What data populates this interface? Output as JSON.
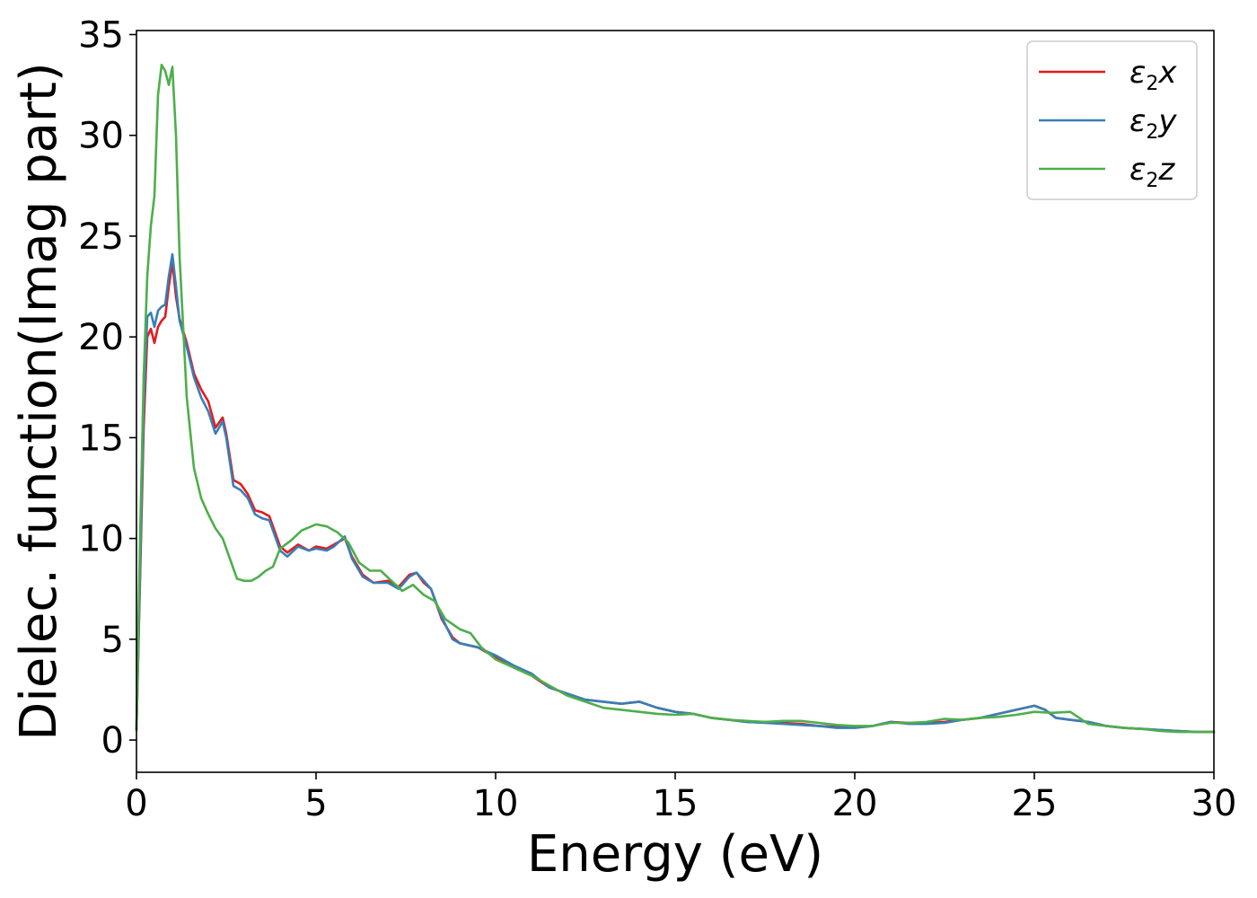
{
  "chart_data": {
    "type": "line",
    "xlabel": "Energy (eV)",
    "ylabel": "Dielec. function(Imag part)",
    "xlim": [
      0,
      30
    ],
    "ylim": [
      -1.6,
      35.2
    ],
    "xticks": [
      0,
      5,
      10,
      15,
      20,
      25,
      30
    ],
    "yticks": [
      0,
      5,
      10,
      15,
      20,
      25,
      30,
      35
    ],
    "grid": false,
    "legend_position": "top-right",
    "series": [
      {
        "name": "ε2x",
        "legend": {
          "symbol": "ε",
          "sub": "2",
          "axis": "x"
        },
        "color": "#e41a1c",
        "x": [
          0,
          0.1,
          0.2,
          0.3,
          0.4,
          0.5,
          0.6,
          0.7,
          0.8,
          0.9,
          1.0,
          1.1,
          1.2,
          1.4,
          1.6,
          1.8,
          2.0,
          2.2,
          2.4,
          2.5,
          2.7,
          2.9,
          3.1,
          3.3,
          3.5,
          3.7,
          4.0,
          4.2,
          4.5,
          4.8,
          5.0,
          5.3,
          5.5,
          5.8,
          6.0,
          6.3,
          6.6,
          7.0,
          7.3,
          7.6,
          7.8,
          8.0,
          8.2,
          8.5,
          8.8,
          9.0,
          9.5,
          10.0,
          10.5,
          11.0,
          11.5,
          12.0,
          12.5,
          13.0,
          13.5,
          14.0,
          14.5,
          15.0,
          15.5,
          16.0,
          16.5,
          17.0,
          17.5,
          18.0,
          18.5,
          19.0,
          19.5,
          20.0,
          20.5,
          21.0,
          21.5,
          22.0,
          22.5,
          23.0,
          23.5,
          24.0,
          24.5,
          25.0,
          25.3,
          25.6,
          26.0,
          26.5,
          27.0,
          27.5,
          28.0,
          28.5,
          29.0,
          29.5,
          30.0
        ],
        "y": [
          0.5,
          8.0,
          15.5,
          20.0,
          20.4,
          19.7,
          20.5,
          20.8,
          21.0,
          22.5,
          23.7,
          22.0,
          20.9,
          19.7,
          18.2,
          17.4,
          16.8,
          15.5,
          16.0,
          15.2,
          12.9,
          12.7,
          12.2,
          11.4,
          11.3,
          11.1,
          9.6,
          9.3,
          9.7,
          9.4,
          9.6,
          9.5,
          9.7,
          10.0,
          9.1,
          8.2,
          7.8,
          7.9,
          7.6,
          8.2,
          8.3,
          7.8,
          7.5,
          6.0,
          5.1,
          4.8,
          4.6,
          4.1,
          3.6,
          3.2,
          2.6,
          2.3,
          2.0,
          1.9,
          1.8,
          1.9,
          1.6,
          1.4,
          1.3,
          1.1,
          1.0,
          0.9,
          0.9,
          0.85,
          0.8,
          0.7,
          0.65,
          0.62,
          0.7,
          0.9,
          0.85,
          0.85,
          0.9,
          1.0,
          1.1,
          1.3,
          1.5,
          1.7,
          1.5,
          1.1,
          1.0,
          0.9,
          0.7,
          0.6,
          0.55,
          0.5,
          0.45,
          0.4,
          0.4
        ]
      },
      {
        "name": "ε2y",
        "legend": {
          "symbol": "ε",
          "sub": "2",
          "axis": "y"
        },
        "color": "#377eb8",
        "x": [
          0,
          0.1,
          0.2,
          0.3,
          0.4,
          0.5,
          0.6,
          0.7,
          0.8,
          0.9,
          1.0,
          1.1,
          1.2,
          1.4,
          1.6,
          1.8,
          2.0,
          2.2,
          2.4,
          2.5,
          2.7,
          2.9,
          3.1,
          3.3,
          3.5,
          3.7,
          4.0,
          4.2,
          4.5,
          4.8,
          5.0,
          5.3,
          5.5,
          5.8,
          6.0,
          6.3,
          6.6,
          7.0,
          7.3,
          7.6,
          7.8,
          8.0,
          8.2,
          8.5,
          8.8,
          9.0,
          9.5,
          10.0,
          10.5,
          11.0,
          11.5,
          12.0,
          12.5,
          13.0,
          13.5,
          14.0,
          14.5,
          15.0,
          15.5,
          16.0,
          16.5,
          17.0,
          17.5,
          18.0,
          18.5,
          19.0,
          19.5,
          20.0,
          20.5,
          21.0,
          21.5,
          22.0,
          22.5,
          23.0,
          23.5,
          24.0,
          24.5,
          25.0,
          25.3,
          25.6,
          26.0,
          26.5,
          27.0,
          27.5,
          28.0,
          28.5,
          29.0,
          29.5,
          30.0
        ],
        "y": [
          0.5,
          8.5,
          16.5,
          21.0,
          21.2,
          20.5,
          21.3,
          21.5,
          21.6,
          23.0,
          24.1,
          22.5,
          20.8,
          19.5,
          18.0,
          17.0,
          16.3,
          15.2,
          15.8,
          15.0,
          12.6,
          12.4,
          12.0,
          11.2,
          11.0,
          10.9,
          9.4,
          9.1,
          9.6,
          9.4,
          9.5,
          9.4,
          9.6,
          10.1,
          9.0,
          8.1,
          7.8,
          7.8,
          7.5,
          8.1,
          8.3,
          7.9,
          7.5,
          6.1,
          5.0,
          4.8,
          4.6,
          4.2,
          3.7,
          3.3,
          2.6,
          2.3,
          2.0,
          1.9,
          1.8,
          1.9,
          1.6,
          1.4,
          1.3,
          1.1,
          1.0,
          0.9,
          0.85,
          0.8,
          0.75,
          0.7,
          0.6,
          0.6,
          0.7,
          0.9,
          0.8,
          0.8,
          0.85,
          1.0,
          1.1,
          1.3,
          1.5,
          1.7,
          1.5,
          1.1,
          1.0,
          0.9,
          0.7,
          0.6,
          0.55,
          0.5,
          0.45,
          0.4,
          0.4
        ]
      },
      {
        "name": "ε2z",
        "legend": {
          "symbol": "ε",
          "sub": "2",
          "axis": "z"
        },
        "color": "#4daf4a",
        "x": [
          0,
          0.1,
          0.2,
          0.3,
          0.4,
          0.5,
          0.6,
          0.7,
          0.8,
          0.9,
          1.0,
          1.1,
          1.2,
          1.4,
          1.6,
          1.8,
          2.0,
          2.2,
          2.4,
          2.6,
          2.8,
          3.0,
          3.2,
          3.4,
          3.6,
          3.8,
          4.0,
          4.3,
          4.6,
          5.0,
          5.3,
          5.6,
          5.9,
          6.2,
          6.5,
          6.8,
          7.1,
          7.4,
          7.7,
          8.0,
          8.3,
          8.6,
          9.0,
          9.3,
          9.6,
          10.0,
          10.5,
          11.0,
          11.5,
          12.0,
          12.5,
          13.0,
          13.5,
          14.0,
          14.5,
          15.0,
          15.5,
          16.0,
          16.5,
          17.0,
          17.5,
          18.0,
          18.5,
          19.0,
          19.5,
          20.0,
          20.5,
          21.0,
          21.5,
          22.0,
          22.5,
          23.0,
          23.5,
          24.0,
          24.5,
          25.0,
          25.5,
          26.0,
          26.5,
          27.0,
          27.5,
          28.0,
          28.5,
          29.0,
          29.5,
          30.0
        ],
        "y": [
          0.5,
          10.0,
          18.0,
          23.0,
          25.5,
          27.0,
          32.0,
          33.5,
          33.2,
          32.5,
          33.4,
          30.0,
          24.0,
          17.0,
          13.5,
          12.0,
          11.2,
          10.5,
          10.0,
          9.0,
          8.0,
          7.9,
          7.9,
          8.1,
          8.4,
          8.6,
          9.5,
          9.9,
          10.4,
          10.7,
          10.6,
          10.3,
          9.8,
          8.8,
          8.4,
          8.4,
          7.9,
          7.4,
          7.7,
          7.2,
          6.9,
          6.0,
          5.5,
          5.3,
          4.6,
          4.0,
          3.6,
          3.2,
          2.7,
          2.2,
          1.9,
          1.6,
          1.5,
          1.4,
          1.3,
          1.25,
          1.3,
          1.1,
          1.0,
          0.95,
          0.9,
          0.95,
          0.95,
          0.85,
          0.75,
          0.7,
          0.7,
          0.85,
          0.85,
          0.9,
          1.05,
          1.0,
          1.1,
          1.15,
          1.25,
          1.4,
          1.35,
          1.4,
          0.8,
          0.7,
          0.6,
          0.55,
          0.45,
          0.4,
          0.4,
          0.4
        ]
      }
    ]
  }
}
